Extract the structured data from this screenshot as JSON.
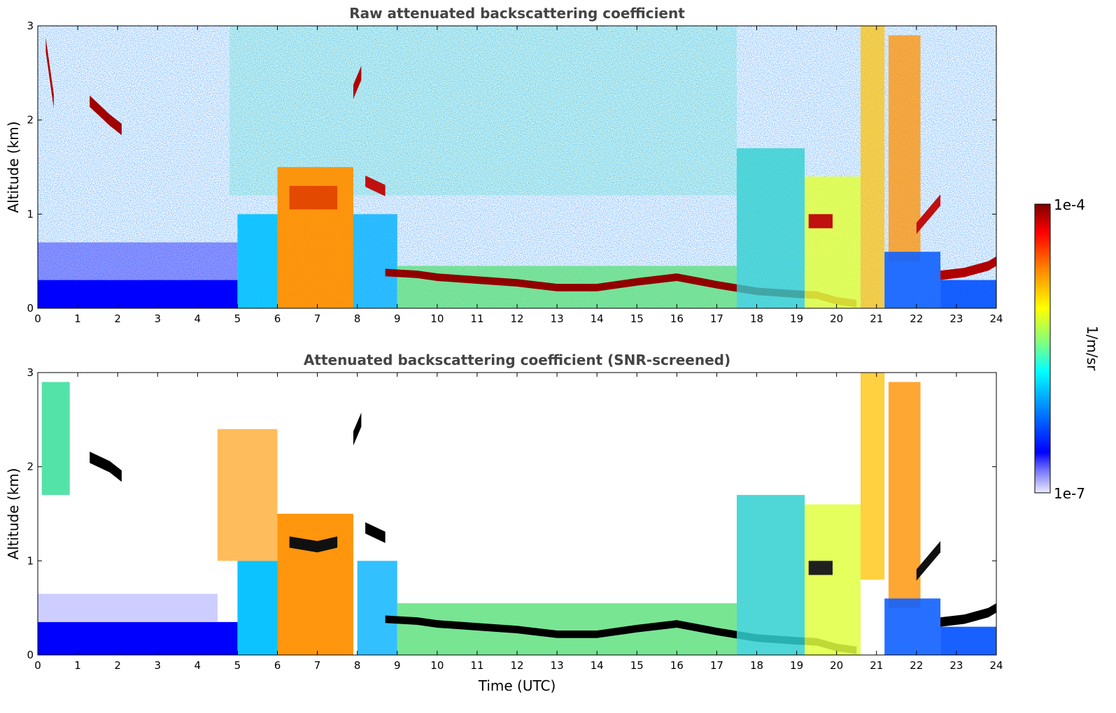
{
  "chart_data": [
    {
      "type": "heatmap",
      "title": "Raw attenuated backscattering coefficient",
      "xlabel": "",
      "ylabel": "Altitude (km)",
      "xlim": [
        0,
        24
      ],
      "ylim": [
        0,
        3
      ],
      "x_ticks": [
        "0",
        "1",
        "2",
        "3",
        "4",
        "5",
        "6",
        "7",
        "8",
        "9",
        "10",
        "11",
        "12",
        "13",
        "14",
        "15",
        "16",
        "17",
        "18",
        "19",
        "20",
        "21",
        "22",
        "23",
        "24"
      ],
      "y_ticks": [
        "0",
        "1",
        "2",
        "3"
      ],
      "x_unit": "Time (UTC)",
      "features": [
        {
          "name": "boundary_layer_top",
          "time": [
            8.7,
            10,
            12,
            14,
            16,
            18,
            19.5,
            20.5
          ],
          "altitude": [
            0.38,
            0.33,
            0.27,
            0.22,
            0.33,
            0.18,
            0.14,
            0.05
          ]
        },
        {
          "name": "aerosol_layer",
          "time": [
            6.0,
            7.9
          ],
          "altitude": [
            0.1,
            1.5
          ]
        },
        {
          "name": "cloud",
          "time": [
            19.3,
            19.9
          ],
          "altitude": [
            0.9,
            1.0
          ]
        },
        {
          "name": "cloud",
          "time": [
            22.0,
            22.6
          ],
          "altitude": [
            0.8,
            1.2
          ]
        },
        {
          "name": "cloud",
          "time": [
            22.6,
            24.0
          ],
          "altitude": [
            0.3,
            0.55
          ]
        }
      ]
    },
    {
      "type": "heatmap",
      "title": "Attenuated backscattering coefficient (SNR-screened)",
      "xlabel": "Time (UTC)",
      "ylabel": "Altitude (km)",
      "xlim": [
        0,
        24
      ],
      "ylim": [
        0,
        3
      ],
      "x_ticks": [
        "0",
        "1",
        "2",
        "3",
        "4",
        "5",
        "6",
        "7",
        "8",
        "9",
        "10",
        "11",
        "12",
        "13",
        "14",
        "15",
        "16",
        "17",
        "18",
        "19",
        "20",
        "21",
        "22",
        "23",
        "24"
      ],
      "y_ticks": [
        "0",
        "1",
        "2",
        "3"
      ]
    }
  ],
  "colorbar": {
    "label": "1/m/sr",
    "max_label": "1e-4",
    "min_label": "1e-7",
    "colormap": "jet",
    "stops": [
      "#ececff",
      "#0000ff",
      "#00a0ff",
      "#00ffff",
      "#80ff80",
      "#ffff00",
      "#ff8000",
      "#ff0000",
      "#800000"
    ]
  }
}
